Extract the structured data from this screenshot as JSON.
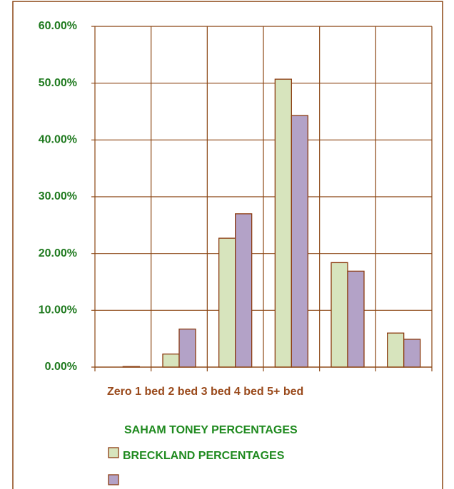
{
  "chart_data": {
    "type": "bar",
    "categories": [
      "Zero",
      "1 bed",
      "2 bed",
      "3 bed",
      "4 bed",
      "5+ bed"
    ],
    "series": [
      {
        "name": "SAHAM TONEY PERCENTAGES",
        "color": "#d7e4bd",
        "values": [
          0,
          2.3,
          22.7,
          50.7,
          18.4,
          6.0
        ]
      },
      {
        "name": "BRECKLAND PERCENTAGES",
        "color": "#b3a2c7",
        "values": [
          0.1,
          6.7,
          27.0,
          44.3,
          16.9,
          4.9
        ]
      }
    ],
    "ylim": [
      0,
      60
    ],
    "yticks": [
      {
        "value": 0,
        "label": "0.00%"
      },
      {
        "value": 10,
        "label": "10.00%"
      },
      {
        "value": 20,
        "label": "20.00%"
      },
      {
        "value": 30,
        "label": "30.00%"
      },
      {
        "value": 40,
        "label": "40.00%"
      },
      {
        "value": 50,
        "label": "50.00%"
      },
      {
        "value": 60,
        "label": "60.00%"
      }
    ],
    "grid": true
  }
}
